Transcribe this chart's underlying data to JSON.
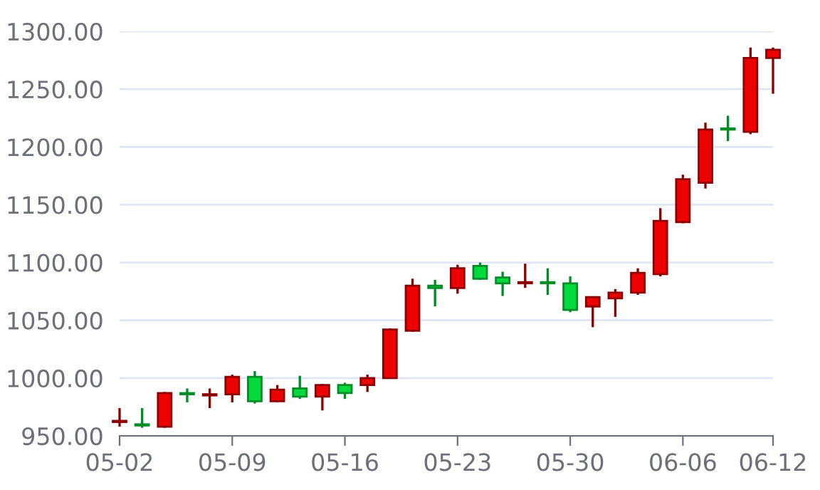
{
  "chart_data": {
    "type": "candlestick",
    "categories": [
      "05-02",
      null,
      null,
      null,
      null,
      "05-09",
      null,
      null,
      null,
      null,
      "05-16",
      null,
      null,
      null,
      null,
      "05-23",
      null,
      null,
      null,
      null,
      "05-30",
      null,
      null,
      null,
      null,
      "06-06",
      null,
      null,
      null,
      "06-12"
    ],
    "ohlc": [
      [
        962,
        974,
        958,
        963
      ],
      [
        960,
        974,
        957,
        959
      ],
      [
        958,
        988,
        957,
        987
      ],
      [
        987,
        991,
        979,
        986
      ],
      [
        985,
        991,
        974,
        986
      ],
      [
        986,
        1003,
        979,
        1001
      ],
      [
        1001,
        1006,
        978,
        980
      ],
      [
        980,
        994,
        979,
        990
      ],
      [
        991,
        1002,
        982,
        984
      ],
      [
        984,
        995,
        972,
        994
      ],
      [
        994,
        996,
        982,
        987
      ],
      [
        994,
        1003,
        988,
        1000
      ],
      [
        1000,
        1043,
        1000,
        1042
      ],
      [
        1041,
        1086,
        1040,
        1080
      ],
      [
        1080,
        1085,
        1062,
        1078
      ],
      [
        1078,
        1098,
        1073,
        1095
      ],
      [
        1097,
        1100,
        1085,
        1086
      ],
      [
        1087,
        1092,
        1071,
        1082
      ],
      [
        1082,
        1099,
        1078,
        1083
      ],
      [
        1083,
        1095,
        1072,
        1082
      ],
      [
        1082,
        1088,
        1057,
        1059
      ],
      [
        1062,
        1070,
        1044,
        1070
      ],
      [
        1069,
        1077,
        1053,
        1074
      ],
      [
        1074,
        1095,
        1072,
        1091
      ],
      [
        1090,
        1147,
        1088,
        1136
      ],
      [
        1135,
        1176,
        1134,
        1172
      ],
      [
        1169,
        1221,
        1164,
        1215
      ],
      [
        1216,
        1227,
        1205,
        1215
      ],
      [
        1213,
        1286,
        1211,
        1277
      ],
      [
        1277,
        1286,
        1246,
        1284
      ]
    ],
    "colors": [
      "#ec0000",
      "#00da3c",
      "#ec0000",
      "#00da3c",
      "#ec0000",
      "#ec0000",
      "#00da3c",
      "#ec0000",
      "#00da3c",
      "#ec0000",
      "#00da3c",
      "#ec0000",
      "#ec0000",
      "#ec0000",
      "#00da3c",
      "#ec0000",
      "#00da3c",
      "#00da3c",
      "#ec0000",
      "#00da3c",
      "#00da3c",
      "#ec0000",
      "#ec0000",
      "#ec0000",
      "#ec0000",
      "#ec0000",
      "#ec0000",
      "#00da3c",
      "#ec0000",
      "#ec0000"
    ],
    "ylim": [
      950,
      1300
    ],
    "yticks": [
      {
        "value": 950,
        "label": "950.00"
      },
      {
        "value": 1000,
        "label": "1000.00"
      },
      {
        "value": 1050,
        "label": "1050.00"
      },
      {
        "value": 1100,
        "label": "1100.00"
      },
      {
        "value": 1150,
        "label": "1150.00"
      },
      {
        "value": 1200,
        "label": "1200.00"
      },
      {
        "value": 1250,
        "label": "1250.00"
      },
      {
        "value": 1300,
        "label": "1300.00"
      }
    ],
    "grid": "y"
  }
}
